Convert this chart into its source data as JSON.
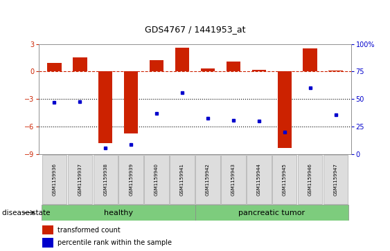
{
  "title": "GDS4767 / 1441953_at",
  "samples": [
    "GSM1159936",
    "GSM1159937",
    "GSM1159938",
    "GSM1159939",
    "GSM1159940",
    "GSM1159941",
    "GSM1159942",
    "GSM1159943",
    "GSM1159944",
    "GSM1159945",
    "GSM1159946",
    "GSM1159947"
  ],
  "transformed_count": [
    0.9,
    1.5,
    -7.8,
    -6.7,
    1.2,
    2.6,
    0.3,
    1.1,
    0.2,
    -8.3,
    2.5,
    0.1
  ],
  "percentile_rank": [
    47,
    48,
    6,
    9,
    37,
    56,
    33,
    31,
    30,
    20,
    60,
    36
  ],
  "n_healthy": 6,
  "n_tumor": 6,
  "healthy_label": "healthy",
  "tumor_label": "pancreatic tumor",
  "group_color": "#7dcc7d",
  "bar_color": "#cc2200",
  "dot_color": "#0000cc",
  "ylim_left": [
    -9,
    3
  ],
  "ylim_right": [
    0,
    100
  ],
  "yticks_left": [
    3,
    0,
    -3,
    -6,
    -9
  ],
  "yticks_right": [
    0,
    25,
    50,
    75,
    100
  ],
  "ytick_right_labels": [
    "0",
    "25",
    "50",
    "75",
    "100%"
  ],
  "hline_y": 0,
  "dotted_lines": [
    -3,
    -6
  ],
  "background_color": "#ffffff",
  "label_color_left": "#cc2200",
  "label_color_right": "#0000cc",
  "legend_bar_label": "transformed count",
  "legend_dot_label": "percentile rank within the sample",
  "disease_state_label": "disease state",
  "title_fontsize": 9,
  "tick_fontsize": 7,
  "sample_fontsize": 5,
  "label_fontsize": 7.5,
  "legend_fontsize": 7,
  "group_fontsize": 8
}
